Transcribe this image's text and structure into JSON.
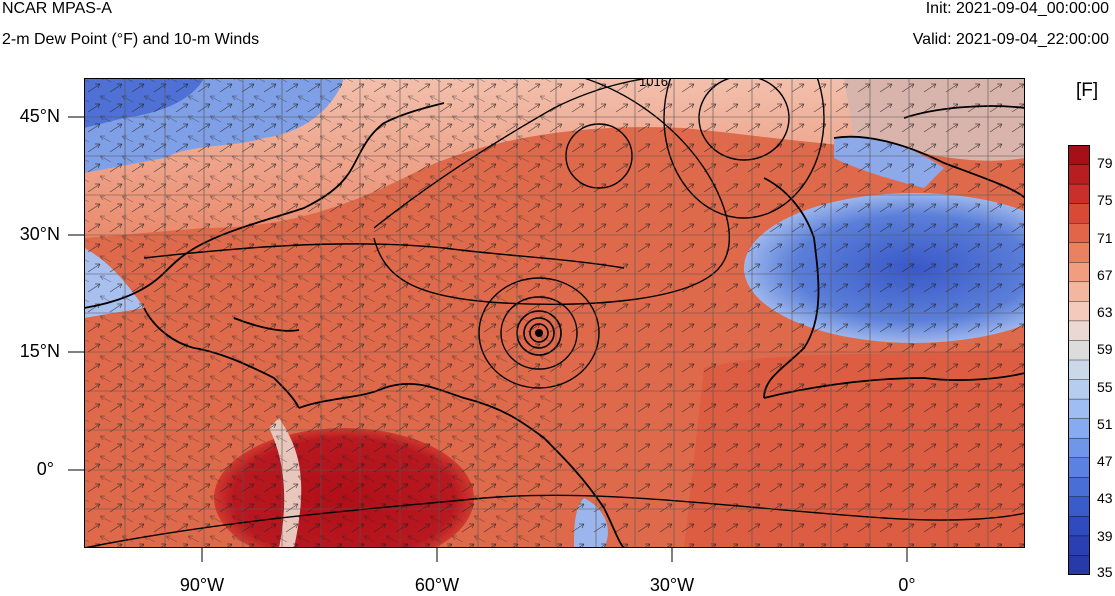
{
  "header": {
    "title": "NCAR MPAS-A",
    "subtitle": "2-m Dew Point (°F) and 10-m Winds",
    "init": "Init: 2021-09-04_00:00:00",
    "valid": "Valid: 2021-09-04_22:00:00"
  },
  "map": {
    "lat_labels": [
      "45°N",
      "30°N",
      "15°N",
      "0°"
    ],
    "lon_labels": [
      "90°W",
      "60°W",
      "30°W",
      "0°"
    ],
    "contour_label": "1016",
    "extent": {
      "lon_min": -105,
      "lon_max": 15,
      "lat_min": -10,
      "lat_max": 50
    }
  },
  "colorbar": {
    "units": "[F]",
    "labels": [
      "79",
      "75",
      "71",
      "67",
      "63",
      "59",
      "55",
      "51",
      "47",
      "43",
      "39",
      "35"
    ],
    "colors": [
      "#a50f15",
      "#b81d22",
      "#cb2f2b",
      "#d94a36",
      "#e2654a",
      "#ea8262",
      "#f09e7f",
      "#f3b69f",
      "#f3cabb",
      "#ecd8d2",
      "#dcdcdc",
      "#cbd8e8",
      "#b6cdf0",
      "#9fbdf2",
      "#87aaf0",
      "#7096ea",
      "#5b82e0",
      "#496fd6",
      "#3a5ccb",
      "#2f4bbf",
      "#2a40b2",
      "#263aa8"
    ]
  },
  "colors": {
    "ocean_base": "#e0704f",
    "land_warm": "#d9543b",
    "amazon": "#b5121b",
    "cold_land": "#5b7fd9",
    "cold_sahara": "#3f5fcf",
    "gridline": "#555555"
  }
}
